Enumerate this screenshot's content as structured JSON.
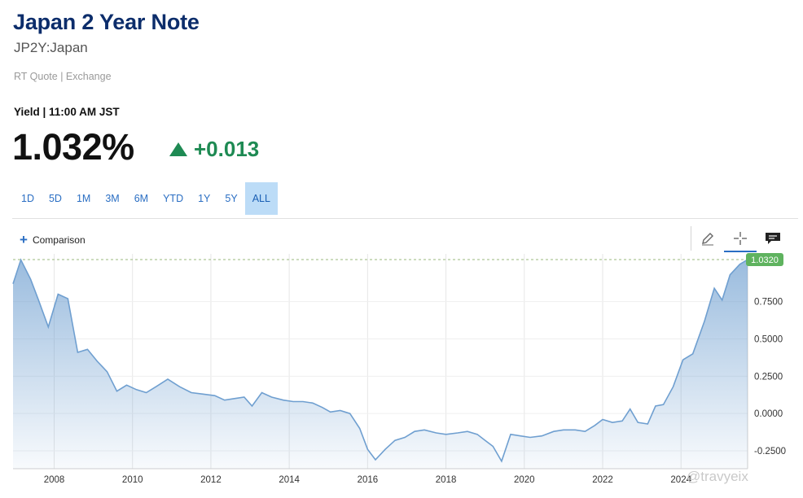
{
  "header": {
    "title": "Japan 2 Year Note",
    "symbol": "JP2Y:Japan",
    "quote_source": "RT Quote | Exchange",
    "yield_label": "Yield | 11:00 AM JST",
    "price": "1.032%",
    "change": "+0.013",
    "change_direction": "up",
    "change_color": "#1e8a53"
  },
  "ranges": [
    "1D",
    "5D",
    "1M",
    "3M",
    "6M",
    "YTD",
    "1Y",
    "5Y",
    "ALL"
  ],
  "active_range": "ALL",
  "comparison_label": "Comparison",
  "tools": [
    "pencil-icon",
    "crosshair-icon",
    "comment-icon"
  ],
  "watermark": "@travyeix",
  "chart_data": {
    "type": "area",
    "series_color": "#6f9fd0",
    "last_value_label": "1.0320",
    "last_value_color": "#5fb35f",
    "x_tick_labels": [
      "2008",
      "2010",
      "2012",
      "2014",
      "2016",
      "2018",
      "2020",
      "2022",
      "2024"
    ],
    "y_tick_labels": [
      "0.7500",
      "0.5000",
      "0.2500",
      "0.0000",
      "-0.2500"
    ],
    "ylim": [
      -0.37,
      1.07
    ],
    "xlim": [
      2006.95,
      2025.25
    ],
    "grid": true,
    "points": [
      [
        2006.95,
        0.87
      ],
      [
        2007.15,
        1.03
      ],
      [
        2007.4,
        0.9
      ],
      [
        2007.6,
        0.76
      ],
      [
        2007.85,
        0.58
      ],
      [
        2008.1,
        0.8
      ],
      [
        2008.35,
        0.77
      ],
      [
        2008.6,
        0.41
      ],
      [
        2008.85,
        0.43
      ],
      [
        2009.1,
        0.35
      ],
      [
        2009.35,
        0.28
      ],
      [
        2009.6,
        0.15
      ],
      [
        2009.85,
        0.19
      ],
      [
        2010.1,
        0.16
      ],
      [
        2010.35,
        0.14
      ],
      [
        2010.6,
        0.18
      ],
      [
        2010.9,
        0.23
      ],
      [
        2011.2,
        0.18
      ],
      [
        2011.5,
        0.14
      ],
      [
        2011.8,
        0.13
      ],
      [
        2012.1,
        0.12
      ],
      [
        2012.35,
        0.09
      ],
      [
        2012.6,
        0.1
      ],
      [
        2012.85,
        0.11
      ],
      [
        2013.05,
        0.05
      ],
      [
        2013.3,
        0.14
      ],
      [
        2013.55,
        0.11
      ],
      [
        2013.85,
        0.09
      ],
      [
        2014.1,
        0.08
      ],
      [
        2014.35,
        0.08
      ],
      [
        2014.6,
        0.07
      ],
      [
        2014.85,
        0.04
      ],
      [
        2015.05,
        0.01
      ],
      [
        2015.3,
        0.02
      ],
      [
        2015.55,
        0.0
      ],
      [
        2015.8,
        -0.1
      ],
      [
        2016.0,
        -0.24
      ],
      [
        2016.2,
        -0.31
      ],
      [
        2016.45,
        -0.24
      ],
      [
        2016.7,
        -0.18
      ],
      [
        2016.95,
        -0.16
      ],
      [
        2017.2,
        -0.12
      ],
      [
        2017.45,
        -0.11
      ],
      [
        2017.75,
        -0.13
      ],
      [
        2018.0,
        -0.14
      ],
      [
        2018.3,
        -0.13
      ],
      [
        2018.55,
        -0.12
      ],
      [
        2018.8,
        -0.14
      ],
      [
        2019.0,
        -0.18
      ],
      [
        2019.2,
        -0.22
      ],
      [
        2019.42,
        -0.32
      ],
      [
        2019.65,
        -0.14
      ],
      [
        2019.9,
        -0.15
      ],
      [
        2020.15,
        -0.16
      ],
      [
        2020.45,
        -0.15
      ],
      [
        2020.75,
        -0.12
      ],
      [
        2021.0,
        -0.11
      ],
      [
        2021.3,
        -0.11
      ],
      [
        2021.55,
        -0.12
      ],
      [
        2021.8,
        -0.08
      ],
      [
        2022.0,
        -0.04
      ],
      [
        2022.25,
        -0.06
      ],
      [
        2022.5,
        -0.05
      ],
      [
        2022.7,
        0.03
      ],
      [
        2022.9,
        -0.06
      ],
      [
        2023.15,
        -0.07
      ],
      [
        2023.35,
        0.05
      ],
      [
        2023.55,
        0.06
      ],
      [
        2023.8,
        0.18
      ],
      [
        2024.05,
        0.36
      ],
      [
        2024.3,
        0.4
      ],
      [
        2024.6,
        0.62
      ],
      [
        2024.85,
        0.84
      ],
      [
        2025.05,
        0.76
      ],
      [
        2025.25,
        0.93
      ],
      [
        2025.5,
        1.0
      ],
      [
        2025.7,
        1.032
      ]
    ]
  }
}
